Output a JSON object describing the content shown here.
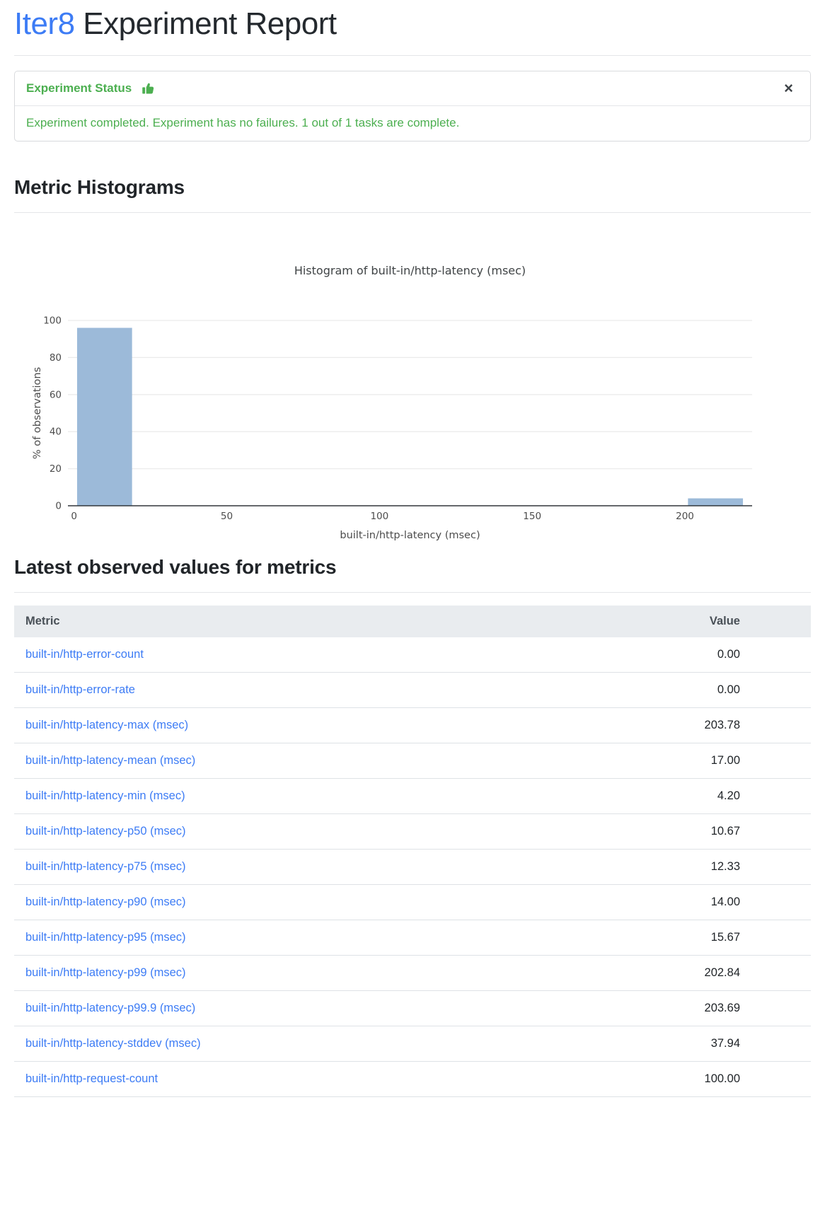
{
  "page": {
    "brand": "Iter8",
    "title_rest": " Experiment Report"
  },
  "status_card": {
    "title": "Experiment Status",
    "thumbs_icon": "thumbs-up-icon",
    "close_icon": "×",
    "message": "Experiment completed. Experiment has no failures. 1 out of 1 tasks are complete."
  },
  "sections": {
    "histograms": "Metric Histograms",
    "latest_values": "Latest observed values for metrics"
  },
  "chart_data": {
    "type": "bar",
    "title": "Histogram of built-in/http-latency (msec)",
    "xlabel": "built-in/http-latency (msec)",
    "ylabel": "% of observations",
    "x_ticks": [
      0,
      50,
      100,
      150,
      200
    ],
    "y_ticks": [
      0,
      20,
      40,
      60,
      80,
      100
    ],
    "xlim": [
      -2,
      222
    ],
    "ylim": [
      0,
      100
    ],
    "grid": true,
    "legend": false,
    "bar_color": "#9cbad9",
    "bins": [
      {
        "x0": 1,
        "x1": 19,
        "percent": 96
      },
      {
        "x0": 201,
        "x1": 219,
        "percent": 4
      }
    ]
  },
  "table": {
    "columns": [
      "Metric",
      "Value"
    ],
    "rows": [
      {
        "metric": "built-in/http-error-count",
        "value": "0.00"
      },
      {
        "metric": "built-in/http-error-rate",
        "value": "0.00"
      },
      {
        "metric": "built-in/http-latency-max (msec)",
        "value": "203.78"
      },
      {
        "metric": "built-in/http-latency-mean (msec)",
        "value": "17.00"
      },
      {
        "metric": "built-in/http-latency-min (msec)",
        "value": "4.20"
      },
      {
        "metric": "built-in/http-latency-p50 (msec)",
        "value": "10.67"
      },
      {
        "metric": "built-in/http-latency-p75 (msec)",
        "value": "12.33"
      },
      {
        "metric": "built-in/http-latency-p90 (msec)",
        "value": "14.00"
      },
      {
        "metric": "built-in/http-latency-p95 (msec)",
        "value": "15.67"
      },
      {
        "metric": "built-in/http-latency-p99 (msec)",
        "value": "202.84"
      },
      {
        "metric": "built-in/http-latency-p99.9 (msec)",
        "value": "203.69"
      },
      {
        "metric": "built-in/http-latency-stddev (msec)",
        "value": "37.94"
      },
      {
        "metric": "built-in/http-request-count",
        "value": "100.00"
      }
    ]
  },
  "colors": {
    "brand_blue": "#3d7cf5",
    "link_blue": "#3d7cf5",
    "success_green": "#4caf50",
    "bar_fill": "#9cbad9",
    "table_header_bg": "#e9ecef",
    "axis_line": "#32373c",
    "grid_line": "#ebebeb"
  }
}
